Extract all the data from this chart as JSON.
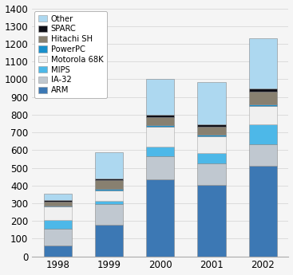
{
  "years": [
    "1998",
    "1999",
    "2000",
    "2001",
    "2002"
  ],
  "series": {
    "ARM": [
      60,
      180,
      435,
      405,
      510
    ],
    "IA-32": [
      95,
      115,
      130,
      120,
      125
    ],
    "MIPS": [
      50,
      20,
      55,
      60,
      110
    ],
    "Motorola 68K": [
      75,
      55,
      110,
      95,
      105
    ],
    "PowerPC": [
      8,
      12,
      12,
      8,
      8
    ],
    "Hitachi SH": [
      22,
      50,
      45,
      45,
      70
    ],
    "SPARC": [
      8,
      8,
      13,
      12,
      18
    ],
    "Other": [
      35,
      150,
      200,
      240,
      285
    ]
  },
  "colors": {
    "ARM": "#3c78b4",
    "IA-32": "#c0c8d0",
    "MIPS": "#4db8e8",
    "Motorola 68K": "#f0f0f0",
    "PowerPC": "#1a90cc",
    "Hitachi SH": "#888070",
    "SPARC": "#101018",
    "Other": "#add8f0"
  },
  "ylim": [
    0,
    1400
  ],
  "yticks": [
    0,
    100,
    200,
    300,
    400,
    500,
    600,
    700,
    800,
    900,
    1000,
    1100,
    1200,
    1300,
    1400
  ],
  "legend_order": [
    "Other",
    "SPARC",
    "Hitachi SH",
    "PowerPC",
    "Motorola 68K",
    "MIPS",
    "IA-32",
    "ARM"
  ],
  "bar_width": 0.55,
  "background_color": "#f5f5f5",
  "grid_color": "#d8d8d8",
  "edge_color": "#999999"
}
